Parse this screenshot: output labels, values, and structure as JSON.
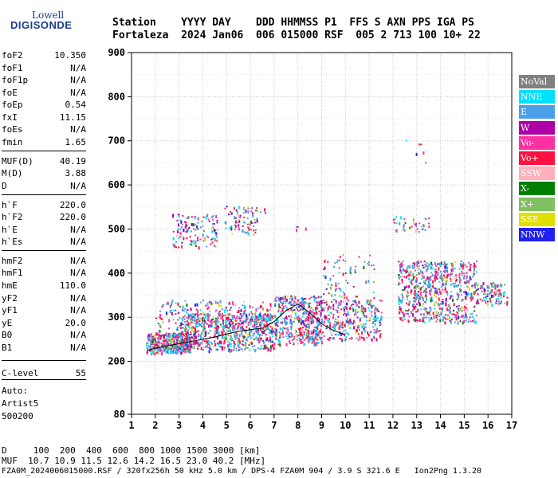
{
  "logo": {
    "line1": "Lowell",
    "line2": "DIGISONDE"
  },
  "header": {
    "line1": "Station    YYYY DAY    DDD HHMMSS P1  FFS S AXN PPS IGA PS",
    "line2": "Fortaleza  2024 Jan06  006 015000 RSF  005 2 713 100 10+ 22"
  },
  "params": [
    {
      "k": "foF2",
      "v": "10.350"
    },
    {
      "k": "foF1",
      "v": "N/A"
    },
    {
      "k": "foF1p",
      "v": "N/A"
    },
    {
      "k": "foE",
      "v": "N/A"
    },
    {
      "k": "foEp",
      "v": "0.54"
    },
    {
      "k": "fxI",
      "v": "11.15"
    },
    {
      "k": "foEs",
      "v": "N/A"
    },
    {
      "k": "fmin",
      "v": "1.65"
    },
    {
      "k": "MUF(D)",
      "v": "40.19"
    },
    {
      "k": "M(D)",
      "v": "3.88"
    },
    {
      "k": "D",
      "v": "N/A"
    },
    {
      "k": "h`F",
      "v": "220.0"
    },
    {
      "k": "h`F2",
      "v": "220.0"
    },
    {
      "k": "h`E",
      "v": "N/A"
    },
    {
      "k": "h`Es",
      "v": "N/A"
    },
    {
      "k": "hmF2",
      "v": "N/A"
    },
    {
      "k": "hmF1",
      "v": "N/A"
    },
    {
      "k": "hmE",
      "v": "110.0"
    },
    {
      "k": "yF2",
      "v": "N/A"
    },
    {
      "k": "yF1",
      "v": "N/A"
    },
    {
      "k": "yE",
      "v": "20.0"
    },
    {
      "k": "B0",
      "v": "N/A"
    },
    {
      "k": "B1",
      "v": "N/A"
    },
    {
      "k": "C-level",
      "v": "55"
    }
  ],
  "auto": {
    "line1": "Auto:",
    "line2": "Artist5",
    "line3": "500200"
  },
  "legend": [
    {
      "label": "NoVal",
      "color": "#808080"
    },
    {
      "label": "NNE",
      "color": "#00e0ff"
    },
    {
      "label": "E",
      "color": "#4aa0e8"
    },
    {
      "label": "W",
      "color": "#b000a8"
    },
    {
      "label": "Vo-",
      "color": "#ff30a0"
    },
    {
      "label": "Vo+",
      "color": "#ff1040"
    },
    {
      "label": "SSW",
      "color": "#ffb0b8"
    },
    {
      "label": "X-",
      "color": "#008000"
    },
    {
      "label": "X+",
      "color": "#80c060"
    },
    {
      "label": "SSE",
      "color": "#e0e000"
    },
    {
      "label": "NNW",
      "color": "#2020f0"
    }
  ],
  "footer": {
    "line1": "D     100  200  400  600  800 1000 1500 3000 [km]",
    "line2": "MUF  10.7 10.9 11.5 12.6 14.2 16.5 23.0 40.2 [MHz]",
    "line3": "FZA0M_2024006015000.RSF / 320fx256h 50 kHz 5.0 km / DPS-4 FZA0M 904 / 3.9 S 321.6 E   Ion2Png 1.3.20"
  },
  "chart_data": {
    "type": "scatter",
    "title": "",
    "xlabel": "",
    "ylabel": "",
    "xlim": [
      1,
      17
    ],
    "ylim": [
      80,
      900
    ],
    "xticks": [
      1,
      2,
      3,
      4,
      5,
      6,
      7,
      8,
      9,
      10,
      11,
      12,
      13,
      14,
      15,
      16,
      17
    ],
    "yticks": [
      80,
      200,
      300,
      400,
      500,
      600,
      700,
      800,
      900
    ],
    "grid": true,
    "legend_position": "right",
    "series": [
      {
        "name": "F-trace",
        "color": "#000000",
        "x": [
          1.65,
          2.0,
          2.5,
          3.0,
          3.5,
          4.0,
          4.5,
          5.0,
          5.5,
          6.0,
          6.5,
          7.0,
          7.5,
          8.0,
          8.5,
          9.0,
          9.5,
          10.0
        ],
        "y": [
          225,
          230,
          235,
          240,
          245,
          250,
          255,
          262,
          268,
          272,
          275,
          290,
          315,
          330,
          310,
          285,
          270,
          260
        ]
      }
    ],
    "clusters": [
      {
        "x": [
          1.6,
          3.5
        ],
        "y": [
          220,
          265
        ],
        "density": 420
      },
      {
        "x": [
          3.0,
          7.0
        ],
        "y": [
          225,
          310
        ],
        "density": 650
      },
      {
        "x": [
          2.0,
          7.0
        ],
        "y": [
          260,
          340
        ],
        "density": 260
      },
      {
        "x": [
          7.0,
          9.0
        ],
        "y": [
          240,
          350
        ],
        "density": 380
      },
      {
        "x": [
          8.0,
          11.5
        ],
        "y": [
          250,
          340
        ],
        "density": 380
      },
      {
        "x": [
          9.0,
          11.2
        ],
        "y": [
          320,
          445
        ],
        "density": 90
      },
      {
        "x": [
          12.2,
          15.5
        ],
        "y": [
          290,
          430
        ],
        "density": 700
      },
      {
        "x": [
          15.5,
          16.8
        ],
        "y": [
          330,
          380
        ],
        "density": 110
      },
      {
        "x": [
          2.7,
          4.6
        ],
        "y": [
          460,
          535
        ],
        "density": 120
      },
      {
        "x": [
          4.9,
          6.3
        ],
        "y": [
          490,
          555
        ],
        "density": 80
      },
      {
        "x": [
          12.0,
          13.5
        ],
        "y": [
          495,
          530
        ],
        "density": 40
      },
      {
        "x": [
          12.5,
          13.4
        ],
        "y": [
          650,
          715
        ],
        "density": 6
      },
      {
        "x": [
          6.4,
          6.6
        ],
        "y": [
          530,
          570
        ],
        "density": 3
      },
      {
        "x": [
          7.9,
          8.4
        ],
        "y": [
          500,
          508
        ],
        "density": 4
      }
    ]
  }
}
